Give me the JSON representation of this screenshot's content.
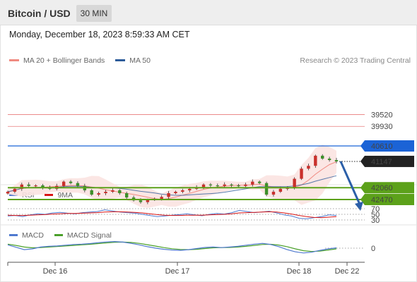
{
  "header": {
    "pair": "Bitcoin / USD",
    "timeframe": "30 MIN"
  },
  "timestamp": "Monday, December 18, 2023 8:59:33 AM CET",
  "legend_main": {
    "bb_label": "MA 20 + Bollinger Bands",
    "ma50_label": "MA 50"
  },
  "research": "Research © 2023 Trading Central",
  "legend_rsi": {
    "rsi_label": "RSI",
    "ma9_label": "9MA"
  },
  "legend_macd": {
    "macd_label": "MACD",
    "signal_label": "MACD Signal"
  },
  "colors": {
    "resistance": "#5ca11a",
    "support": "#1b63d6",
    "extra_level": "#e35a5a",
    "current": "#222222",
    "arrow": "#2b5fa8",
    "bollinger_fill": "#fbe3e1",
    "ma20": "#f08a80",
    "ma50": "#2d5b9a",
    "candle_up": "#3d8f2a",
    "candle_down": "#c9302c",
    "rsi": "#4f79cf",
    "rsi_ma": "#d91515",
    "macd": "#4f79cf",
    "signal": "#4aa02a"
  },
  "chart_data": {
    "type": "candlestick",
    "price_levels": [
      {
        "value": 42470,
        "label": "42470",
        "kind": "resistance"
      },
      {
        "value": 42060,
        "label": "42060",
        "kind": "resistance"
      },
      {
        "value": 41147,
        "label": "41147",
        "kind": "current"
      },
      {
        "value": 40610,
        "label": "40610",
        "kind": "support"
      },
      {
        "value": 39930,
        "label": "39930",
        "kind": "level"
      },
      {
        "value": 39520,
        "label": "39520",
        "kind": "level"
      }
    ],
    "x_ticks": [
      "Dec 16",
      "Dec 17",
      "Dec 18",
      "Dec 22"
    ],
    "close_series": [
      42200,
      42100,
      41950,
      42000,
      41980,
      42050,
      42100,
      42000,
      41850,
      41900,
      42000,
      42150,
      42300,
      42250,
      42200,
      42150,
      42250,
      42400,
      42500,
      42560,
      42480,
      42450,
      42380,
      42250,
      42200,
      42150,
      42100,
      42050,
      41950,
      41980,
      42000,
      41950,
      41980,
      42000,
      41950,
      41850,
      41900,
      42300,
      42200,
      42100,
      42050,
      41750,
      41400,
      41300,
      40950,
      41050,
      41100,
      41147
    ],
    "projection": {
      "from": 41147,
      "to": 42470
    },
    "rsi": {
      "levels": [
        70,
        50,
        30
      ],
      "rsi_values": [
        44,
        46,
        42,
        48,
        52,
        50,
        55,
        57,
        54,
        52,
        56,
        58,
        60,
        66,
        62,
        58,
        56,
        54,
        50,
        46,
        42,
        44,
        47,
        49,
        52,
        48,
        45,
        50,
        53,
        51,
        56,
        64,
        60,
        56,
        58,
        61,
        55,
        48,
        44,
        36,
        34,
        38,
        42,
        48,
        46
      ],
      "ma_values": [
        47,
        46,
        46,
        47,
        48,
        49,
        51,
        52,
        53,
        53,
        54,
        55,
        56,
        58,
        59,
        59,
        58,
        57,
        55,
        52,
        49,
        47,
        46,
        46,
        47,
        47,
        47,
        48,
        49,
        50,
        52,
        55,
        56,
        57,
        58,
        59,
        58,
        55,
        51,
        46,
        42,
        39,
        38,
        40,
        42
      ]
    },
    "macd": {
      "zero_label": "0",
      "macd_values": [
        18,
        5,
        -8,
        -4,
        6,
        10,
        12,
        16,
        20,
        22,
        25,
        30,
        34,
        36,
        33,
        26,
        18,
        8,
        0,
        -6,
        -10,
        -12,
        -8,
        -2,
        4,
        6,
        3,
        6,
        10,
        16,
        22,
        26,
        20,
        8,
        -8,
        -20,
        -26,
        -22,
        -12,
        -4,
        2
      ],
      "signal_values": [
        22,
        15,
        6,
        2,
        3,
        6,
        9,
        12,
        15,
        18,
        21,
        25,
        29,
        32,
        33,
        31,
        26,
        19,
        11,
        3,
        -3,
        -7,
        -8,
        -6,
        -2,
        2,
        3,
        4,
        6,
        10,
        15,
        20,
        21,
        17,
        8,
        -4,
        -14,
        -18,
        -16,
        -10,
        -4
      ]
    }
  }
}
